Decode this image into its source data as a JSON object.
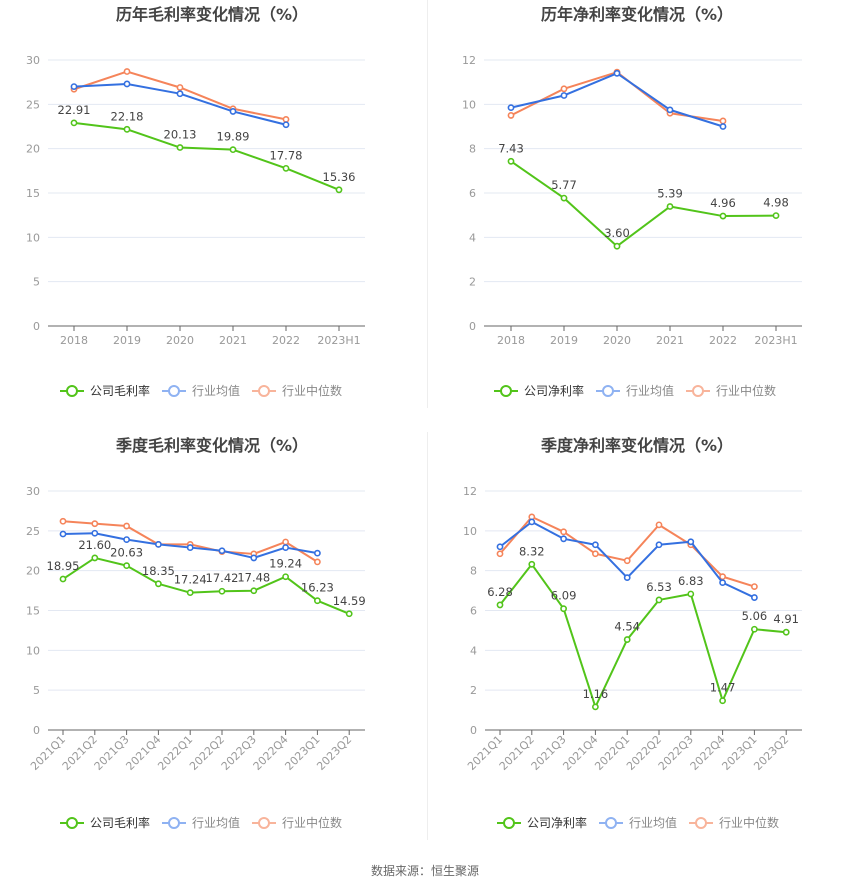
{
  "colors": {
    "company": "#52c41a",
    "avg": "#3470e0",
    "median": "#f5845a",
    "avg_legend": "#8fb2f2",
    "median_legend": "#f8b49b",
    "grid": "#e3e8f2",
    "axis": "#666666"
  },
  "footer": {
    "source": "数据来源：恒生聚源"
  },
  "chart_data": [
    {
      "type": "line",
      "title": "历年毛利率变化情况（%）",
      "categories": [
        "2018",
        "2019",
        "2020",
        "2021",
        "2022",
        "2023H1"
      ],
      "ylim": [
        0,
        30
      ],
      "yticks": [
        "0",
        "5",
        "10",
        "15",
        "20",
        "25",
        "30"
      ],
      "grid": true,
      "legend_position": "bottom",
      "rotate_labels": false,
      "series": [
        {
          "name": "公司毛利率",
          "key": "company",
          "values": [
            22.91,
            22.18,
            20.13,
            19.89,
            17.78,
            15.36
          ],
          "labels": [
            "22.91",
            "22.18",
            "20.13",
            "19.89",
            "17.78",
            "15.36"
          ]
        },
        {
          "name": "行业均值",
          "key": "avg",
          "values": [
            27.0,
            27.3,
            26.2,
            24.2,
            22.7,
            null
          ]
        },
        {
          "name": "行业中位数",
          "key": "median",
          "values": [
            26.7,
            28.7,
            26.9,
            24.5,
            23.3,
            null
          ]
        }
      ]
    },
    {
      "type": "line",
      "title": "历年净利率变化情况（%）",
      "categories": [
        "2018",
        "2019",
        "2020",
        "2021",
        "2022",
        "2023H1"
      ],
      "ylim": [
        0,
        12
      ],
      "yticks": [
        "0",
        "2",
        "4",
        "6",
        "8",
        "10",
        "12"
      ],
      "grid": true,
      "legend_position": "bottom",
      "rotate_labels": false,
      "series": [
        {
          "name": "公司净利率",
          "key": "company",
          "values": [
            7.43,
            5.77,
            3.6,
            5.39,
            4.96,
            4.98
          ],
          "labels": [
            "7.43",
            "5.77",
            "3.60",
            "5.39",
            "4.96",
            "4.98"
          ]
        },
        {
          "name": "行业均值",
          "key": "avg",
          "values": [
            9.85,
            10.4,
            11.4,
            9.75,
            9.0,
            null
          ]
        },
        {
          "name": "行业中位数",
          "key": "median",
          "values": [
            9.5,
            10.7,
            11.45,
            9.6,
            9.25,
            null
          ]
        }
      ]
    },
    {
      "type": "line",
      "title": "季度毛利率变化情况（%）",
      "categories": [
        "2021Q1",
        "2021Q2",
        "2021Q3",
        "2021Q4",
        "2022Q1",
        "2022Q2",
        "2022Q3",
        "2022Q4",
        "2023Q1",
        "2023Q2"
      ],
      "ylim": [
        0,
        30
      ],
      "yticks": [
        "0",
        "5",
        "10",
        "15",
        "20",
        "25",
        "30"
      ],
      "grid": true,
      "legend_position": "bottom",
      "rotate_labels": true,
      "series": [
        {
          "name": "公司毛利率",
          "key": "company",
          "values": [
            18.95,
            21.6,
            20.63,
            18.35,
            17.24,
            17.42,
            17.48,
            19.24,
            16.23,
            14.59
          ],
          "labels": [
            "18.95",
            "21.60",
            "20.63",
            "18.35",
            "17.24",
            "17.42",
            "17.48",
            "19.24",
            "16.23",
            "14.59"
          ]
        },
        {
          "name": "行业均值",
          "key": "avg",
          "values": [
            24.6,
            24.7,
            23.9,
            23.3,
            22.9,
            22.5,
            21.6,
            22.9,
            22.2,
            null
          ]
        },
        {
          "name": "行业中位数",
          "key": "median",
          "values": [
            26.2,
            25.9,
            25.6,
            23.3,
            23.3,
            22.4,
            22.1,
            23.6,
            21.1,
            null
          ]
        }
      ]
    },
    {
      "type": "line",
      "title": "季度净利率变化情况（%）",
      "categories": [
        "2021Q1",
        "2021Q2",
        "2021Q3",
        "2021Q4",
        "2022Q1",
        "2022Q2",
        "2022Q3",
        "2022Q4",
        "2023Q1",
        "2023Q2"
      ],
      "ylim": [
        0,
        12
      ],
      "yticks": [
        "0",
        "2",
        "4",
        "6",
        "8",
        "10",
        "12"
      ],
      "grid": true,
      "legend_position": "bottom",
      "rotate_labels": true,
      "series": [
        {
          "name": "公司净利率",
          "key": "company",
          "values": [
            6.28,
            8.32,
            6.09,
            1.16,
            4.54,
            6.53,
            6.83,
            1.47,
            5.06,
            4.91
          ],
          "labels": [
            "6.28",
            "8.32",
            "6.09",
            "1.16",
            "4.54",
            "6.53",
            "6.83",
            "1.47",
            "5.06",
            "4.91"
          ]
        },
        {
          "name": "行业均值",
          "key": "avg",
          "values": [
            9.2,
            10.45,
            9.6,
            9.3,
            7.65,
            9.3,
            9.45,
            7.4,
            6.65,
            null
          ]
        },
        {
          "name": "行业中位数",
          "key": "median",
          "values": [
            8.85,
            10.7,
            9.95,
            8.85,
            8.5,
            10.3,
            9.3,
            7.7,
            7.2,
            null
          ]
        }
      ]
    }
  ]
}
